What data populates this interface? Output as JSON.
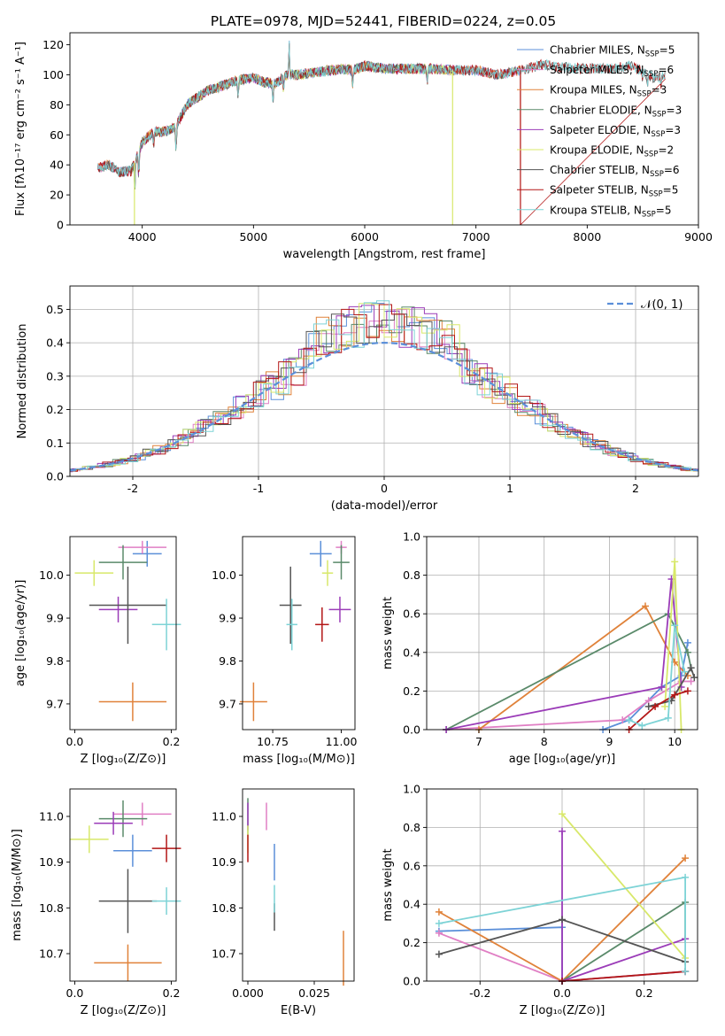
{
  "figure": {
    "title": "PLATE=0978, MJD=52441, FIBERID=0224, z=0.05"
  },
  "model_colors": [
    "#5b8fd9",
    "#e07fc4",
    "#e0823a",
    "#5a8a6a",
    "#9b3cb8",
    "#d8e86a",
    "#555555",
    "#b31616",
    "#7dd3d6"
  ],
  "chart_data": [
    {
      "id": "spectrum",
      "type": "line",
      "title": "PLATE=0978, MJD=52441, FIBERID=0224, z=0.05",
      "xlabel": "wavelength [Angstrom, rest frame]",
      "ylabel": "Flux [fλ10⁻¹⁷ erg cm⁻² s⁻¹ A⁻¹]",
      "xlim": [
        3350,
        9000
      ],
      "ylim": [
        0,
        128
      ],
      "xticks": [
        4000,
        5000,
        6000,
        7000,
        8000,
        9000
      ],
      "yticks": [
        0,
        20,
        40,
        60,
        80,
        100,
        120
      ],
      "legend_position": "upper right",
      "series": [
        {
          "name": "Chabrier MILES, N_SSP=5",
          "label_main": "Chabrier MILES, N",
          "label_sub": "SSP",
          "label_tail": "=5",
          "x_range": [
            3600,
            7400
          ]
        },
        {
          "name": "Salpeter MILES, N_SSP=6",
          "label_main": "Salpeter MILES, N",
          "label_sub": "SSP",
          "label_tail": "=6",
          "x_range": [
            3600,
            7400
          ]
        },
        {
          "name": "Kroupa MILES, N_SSP=3",
          "label_main": "Kroupa MILES, N",
          "label_sub": "SSP",
          "label_tail": "=3",
          "x_range": [
            3600,
            7400
          ]
        },
        {
          "name": "Chabrier ELODIE, N_SSP=3",
          "label_main": "Chabrier ELODIE, N",
          "label_sub": "SSP",
          "label_tail": "=3",
          "x_range": [
            3900,
            6800
          ]
        },
        {
          "name": "Salpeter ELODIE, N_SSP=3",
          "label_main": "Salpeter ELODIE, N",
          "label_sub": "SSP",
          "label_tail": "=3",
          "x_range": [
            3900,
            6800
          ]
        },
        {
          "name": "Kroupa ELODIE, N_SSP=2",
          "label_main": "Kroupa ELODIE, N",
          "label_sub": "SSP",
          "label_tail": "=2",
          "x_range": [
            3900,
            6800
          ]
        },
        {
          "name": "Chabrier STELIB, N_SSP=6",
          "label_main": "Chabrier STELIB, N",
          "label_sub": "SSP",
          "label_tail": "=6",
          "x_range": [
            3600,
            8700
          ]
        },
        {
          "name": "Salpeter STELIB, N_SSP=5",
          "label_main": "Salpeter STELIB, N",
          "label_sub": "SSP",
          "label_tail": "=5",
          "x_range": [
            3600,
            8700
          ]
        },
        {
          "name": "Kroupa STELIB, N_SSP=5",
          "label_main": "Kroupa STELIB, N",
          "label_sub": "SSP",
          "label_tail": "=5",
          "x_range": [
            3600,
            8700
          ]
        }
      ],
      "continuum_anchors": [
        [
          3600,
          38
        ],
        [
          3700,
          40
        ],
        [
          3800,
          35
        ],
        [
          3900,
          36
        ],
        [
          3950,
          45
        ],
        [
          4000,
          55
        ],
        [
          4100,
          62
        ],
        [
          4200,
          62
        ],
        [
          4300,
          65
        ],
        [
          4400,
          80
        ],
        [
          4500,
          85
        ],
        [
          4600,
          90
        ],
        [
          4700,
          92
        ],
        [
          4800,
          95
        ],
        [
          4900,
          97
        ],
        [
          5000,
          98
        ],
        [
          5100,
          95
        ],
        [
          5200,
          94
        ],
        [
          5300,
          100
        ],
        [
          5400,
          100
        ],
        [
          5500,
          101
        ],
        [
          5600,
          102
        ],
        [
          5700,
          103
        ],
        [
          5800,
          104
        ],
        [
          5900,
          103
        ],
        [
          6000,
          106
        ],
        [
          6200,
          104
        ],
        [
          6400,
          104
        ],
        [
          6600,
          104
        ],
        [
          6800,
          103
        ],
        [
          7000,
          103
        ],
        [
          7200,
          100
        ],
        [
          7400,
          103
        ],
        [
          7600,
          107
        ],
        [
          7800,
          105
        ],
        [
          8000,
          104
        ],
        [
          8200,
          104
        ],
        [
          8400,
          106
        ],
        [
          8600,
          98
        ],
        [
          8700,
          100
        ]
      ],
      "features": [
        [
          3934,
          18
        ],
        [
          3968,
          16
        ],
        [
          4102,
          8
        ],
        [
          4304,
          14
        ],
        [
          4861,
          10
        ],
        [
          5175,
          12
        ],
        [
          5270,
          7
        ],
        [
          5890,
          10
        ],
        [
          6563,
          8
        ],
        [
          8498,
          6
        ],
        [
          8542,
          8
        ],
        [
          8662,
          6
        ]
      ],
      "spikes": [
        [
          5320,
          25
        ]
      ],
      "drops": [
        [
          3930,
          3930
        ],
        [
          6790,
          6790
        ],
        [
          7400,
          7400
        ]
      ]
    },
    {
      "id": "residuals",
      "type": "histogram",
      "xlabel": "(data-model)/error",
      "ylabel": "Normed distribution",
      "xlim": [
        -2.5,
        2.5
      ],
      "ylim": [
        0,
        0.57
      ],
      "xticks": [
        -2,
        -1,
        0,
        1,
        2
      ],
      "yticks": [
        0.0,
        0.1,
        0.2,
        0.3,
        0.4,
        0.5
      ],
      "bin_width": 0.1,
      "peak": 0.4,
      "legend": "𝒩(0, 1)",
      "legend_position": "upper right",
      "reference_curve": "N(0,1) dashed",
      "grid": true
    },
    {
      "id": "age-vs-Z",
      "type": "errorbar",
      "xlabel": "Z [log₁₀(Z/Z⊙)]",
      "ylabel": "age  [log₁₀(age/yr)]",
      "xlim": [
        -0.01,
        0.21
      ],
      "ylim": [
        9.64,
        10.09
      ],
      "xticks": [
        0.0,
        0.2
      ],
      "yticks": [
        9.7,
        9.8,
        9.9,
        10.0
      ],
      "points": [
        {
          "x": 0.15,
          "xerr": 0.03,
          "y": 10.05,
          "yerr": 0.03
        },
        {
          "x": 0.14,
          "xerr": 0.05,
          "y": 10.065,
          "yerr": 0.015
        },
        {
          "x": 0.12,
          "xerr": 0.07,
          "y": 9.705,
          "yerr": 0.045
        },
        {
          "x": 0.1,
          "xerr": 0.05,
          "y": 10.03,
          "yerr": 0.04
        },
        {
          "x": 0.09,
          "xerr": 0.04,
          "y": 9.92,
          "yerr": 0.03
        },
        {
          "x": 0.04,
          "xerr": 0.04,
          "y": 10.005,
          "yerr": 0.03
        },
        {
          "x": 0.11,
          "xerr": 0.08,
          "y": 9.93,
          "yerr": 0.09
        },
        {
          "x": 0.14,
          "xerr": 0.0,
          "y": 9.91,
          "yerr": 0.0
        },
        {
          "x": 0.19,
          "xerr": 0.03,
          "y": 9.885,
          "yerr": 0.06
        }
      ]
    },
    {
      "id": "age-vs-mass",
      "type": "errorbar",
      "xlabel": "mass [log₁₀(M/M⊙)]",
      "xlim": [
        10.64,
        11.05
      ],
      "ylim": [
        9.64,
        10.09
      ],
      "xticks": [
        10.75,
        11.0
      ],
      "yticks": [
        9.7,
        9.8,
        9.9,
        10.0
      ],
      "points": [
        {
          "x": 10.925,
          "xerr": 0.04,
          "y": 10.05,
          "yerr": 0.03
        },
        {
          "x": 11.0,
          "xerr": 0.02,
          "y": 10.065,
          "yerr": 0.015
        },
        {
          "x": 10.68,
          "xerr": 0.05,
          "y": 9.705,
          "yerr": 0.045
        },
        {
          "x": 11.0,
          "xerr": 0.03,
          "y": 10.03,
          "yerr": 0.04
        },
        {
          "x": 10.995,
          "xerr": 0.04,
          "y": 9.92,
          "yerr": 0.03
        },
        {
          "x": 10.95,
          "xerr": 0.02,
          "y": 10.005,
          "yerr": 0.03
        },
        {
          "x": 10.815,
          "xerr": 0.04,
          "y": 9.93,
          "yerr": 0.09
        },
        {
          "x": 10.93,
          "xerr": 0.025,
          "y": 9.885,
          "yerr": 0.04
        },
        {
          "x": 10.82,
          "xerr": 0.02,
          "y": 9.885,
          "yerr": 0.06
        }
      ]
    },
    {
      "id": "weight-vs-age",
      "type": "line",
      "xlabel": "age  [log₁₀(age/yr)]",
      "ylabel": "mass weight",
      "xlim": [
        6.2,
        10.35
      ],
      "ylim": [
        0,
        1.0
      ],
      "xticks": [
        7,
        8,
        9,
        10
      ],
      "yticks": [
        0.0,
        0.2,
        0.4,
        0.6,
        0.8,
        1.0
      ],
      "grid": true,
      "series": [
        {
          "points": [
            [
              8.9,
              0.0
            ],
            [
              9.3,
              0.05
            ],
            [
              9.8,
              0.22
            ],
            [
              10.1,
              0.28
            ],
            [
              10.2,
              0.45
            ]
          ]
        },
        {
          "points": [
            [
              6.5,
              0.0
            ],
            [
              9.2,
              0.05
            ],
            [
              9.6,
              0.15
            ],
            [
              10.1,
              0.25
            ],
            [
              10.25,
              0.25
            ]
          ]
        },
        {
          "points": [
            [
              7.0,
              0.0
            ],
            [
              9.55,
              0.64
            ],
            [
              10.0,
              0.35
            ],
            [
              10.2,
              0.28
            ]
          ]
        },
        {
          "points": [
            [
              6.5,
              0.0
            ],
            [
              9.9,
              0.6
            ],
            [
              10.2,
              0.4
            ],
            [
              10.25,
              0.32
            ]
          ]
        },
        {
          "points": [
            [
              6.5,
              0.0
            ],
            [
              9.8,
              0.22
            ],
            [
              9.95,
              0.78
            ],
            [
              10.1,
              0.22
            ]
          ]
        },
        {
          "points": [
            [
              9.85,
              0.12
            ],
            [
              10.0,
              0.87
            ],
            [
              10.1,
              0.0
            ]
          ]
        },
        {
          "points": [
            [
              9.6,
              0.12
            ],
            [
              9.95,
              0.15
            ],
            [
              10.25,
              0.32
            ],
            [
              10.3,
              0.27
            ]
          ]
        },
        {
          "points": [
            [
              9.3,
              0.0
            ],
            [
              9.7,
              0.12
            ],
            [
              10.0,
              0.18
            ],
            [
              10.2,
              0.2
            ]
          ]
        },
        {
          "points": [
            [
              9.3,
              0.05
            ],
            [
              9.5,
              0.02
            ],
            [
              9.9,
              0.06
            ],
            [
              10.0,
              0.54
            ],
            [
              10.15,
              0.3
            ]
          ]
        }
      ]
    },
    {
      "id": "mass-vs-Z",
      "type": "errorbar",
      "xlabel": "Z [log₁₀(Z/Z⊙)]",
      "ylabel": "mass [log₁₀(M/M⊙)]",
      "xlim": [
        -0.01,
        0.21
      ],
      "ylim": [
        10.64,
        11.06
      ],
      "xticks": [
        0.0,
        0.2
      ],
      "yticks": [
        10.7,
        10.8,
        10.9,
        11.0
      ],
      "points": [
        {
          "x": 0.12,
          "xerr": 0.04,
          "y": 10.925,
          "yerr": 0.035
        },
        {
          "x": 0.14,
          "xerr": 0.06,
          "y": 11.005,
          "yerr": 0.025
        },
        {
          "x": 0.11,
          "xerr": 0.07,
          "y": 10.68,
          "yerr": 0.04
        },
        {
          "x": 0.1,
          "xerr": 0.05,
          "y": 10.995,
          "yerr": 0.04
        },
        {
          "x": 0.08,
          "xerr": 0.04,
          "y": 10.985,
          "yerr": 0.025
        },
        {
          "x": 0.03,
          "xerr": 0.04,
          "y": 10.95,
          "yerr": 0.03
        },
        {
          "x": 0.11,
          "xerr": 0.06,
          "y": 10.815,
          "yerr": 0.07
        },
        {
          "x": 0.19,
          "xerr": 0.03,
          "y": 10.93,
          "yerr": 0.03
        },
        {
          "x": 0.19,
          "xerr": 0.03,
          "y": 10.815,
          "yerr": 0.03
        }
      ]
    },
    {
      "id": "mass-vs-EBV",
      "type": "errorbar",
      "xlabel": "E(B-V)",
      "xlim": [
        -0.002,
        0.04
      ],
      "ylim": [
        10.64,
        11.06
      ],
      "xticks": [
        0.0,
        0.025
      ],
      "xtick_labels": [
        "0.000",
        "0.025"
      ],
      "yticks": [
        10.7,
        10.8,
        10.9,
        11.0
      ],
      "points": [
        {
          "x": 0.01,
          "xerr": 0.0,
          "y": 10.9,
          "yerr": 0.04
        },
        {
          "x": 0.007,
          "xerr": 0.0,
          "y": 11.0,
          "yerr": 0.03
        },
        {
          "x": 0.036,
          "xerr": 0.0,
          "y": 10.69,
          "yerr": 0.06
        },
        {
          "x": 0.0,
          "xerr": 0.0,
          "y": 11.0,
          "yerr": 0.04
        },
        {
          "x": 0.0,
          "xerr": 0.0,
          "y": 11.0,
          "yerr": 0.03
        },
        {
          "x": 0.0,
          "xerr": 0.0,
          "y": 10.95,
          "yerr": 0.03
        },
        {
          "x": 0.01,
          "xerr": 0.0,
          "y": 10.78,
          "yerr": 0.03
        },
        {
          "x": 0.0,
          "xerr": 0.0,
          "y": 10.93,
          "yerr": 0.03
        },
        {
          "x": 0.01,
          "xerr": 0.0,
          "y": 10.82,
          "yerr": 0.03
        }
      ]
    },
    {
      "id": "weight-vs-Z",
      "type": "line",
      "xlabel": "Z [log₁₀(Z/Z⊙)]",
      "ylabel": "mass weight",
      "xlim": [
        -0.33,
        0.33
      ],
      "ylim": [
        0,
        1.0
      ],
      "xticks": [
        -0.2,
        0.0,
        0.2
      ],
      "yticks": [
        0.0,
        0.2,
        0.4,
        0.6,
        0.8,
        1.0
      ],
      "grid": true,
      "series": [
        {
          "points": [
            [
              -0.3,
              0.26
            ],
            [
              0.0,
              0.28
            ],
            [
              0.0,
              0.0
            ],
            [
              0.3,
              0.05
            ]
          ]
        },
        {
          "points": [
            [
              -0.3,
              0.25
            ],
            [
              0.0,
              0.0
            ],
            [
              0.3,
              0.05
            ]
          ]
        },
        {
          "points": [
            [
              -0.3,
              0.36
            ],
            [
              0.0,
              0.0
            ],
            [
              0.3,
              0.64
            ]
          ]
        },
        {
          "points": [
            [
              0.0,
              0.0
            ],
            [
              0.3,
              0.41
            ],
            [
              0.3,
              0.22
            ]
          ]
        },
        {
          "points": [
            [
              0.0,
              0.78
            ],
            [
              0.0,
              0.0
            ],
            [
              0.3,
              0.22
            ]
          ]
        },
        {
          "points": [
            [
              0.0,
              0.87
            ],
            [
              0.3,
              0.12
            ]
          ]
        },
        {
          "points": [
            [
              -0.3,
              0.14
            ],
            [
              0.0,
              0.32
            ],
            [
              0.3,
              0.1
            ]
          ]
        },
        {
          "points": [
            [
              0.0,
              0.0
            ],
            [
              0.3,
              0.05
            ]
          ]
        },
        {
          "points": [
            [
              -0.3,
              0.3
            ],
            [
              0.3,
              0.54
            ],
            [
              0.3,
              0.05
            ]
          ]
        }
      ]
    }
  ]
}
